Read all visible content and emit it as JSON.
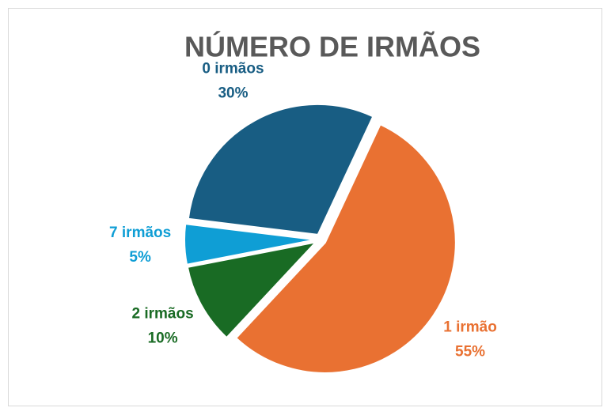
{
  "chart_data": {
    "type": "pie",
    "title": "NÚMERO DE IRMÃOS",
    "categories": [
      "0 irmãos",
      "1 irmão",
      "2 irmãos",
      "7 irmãos"
    ],
    "values": [
      30,
      55,
      10,
      5
    ],
    "value_labels": [
      "30%",
      "55%",
      "10%",
      "5%"
    ],
    "colors": [
      "#185d83",
      "#e97132",
      "#196b24",
      "#0f9ed5"
    ],
    "start_angle": 277
  }
}
